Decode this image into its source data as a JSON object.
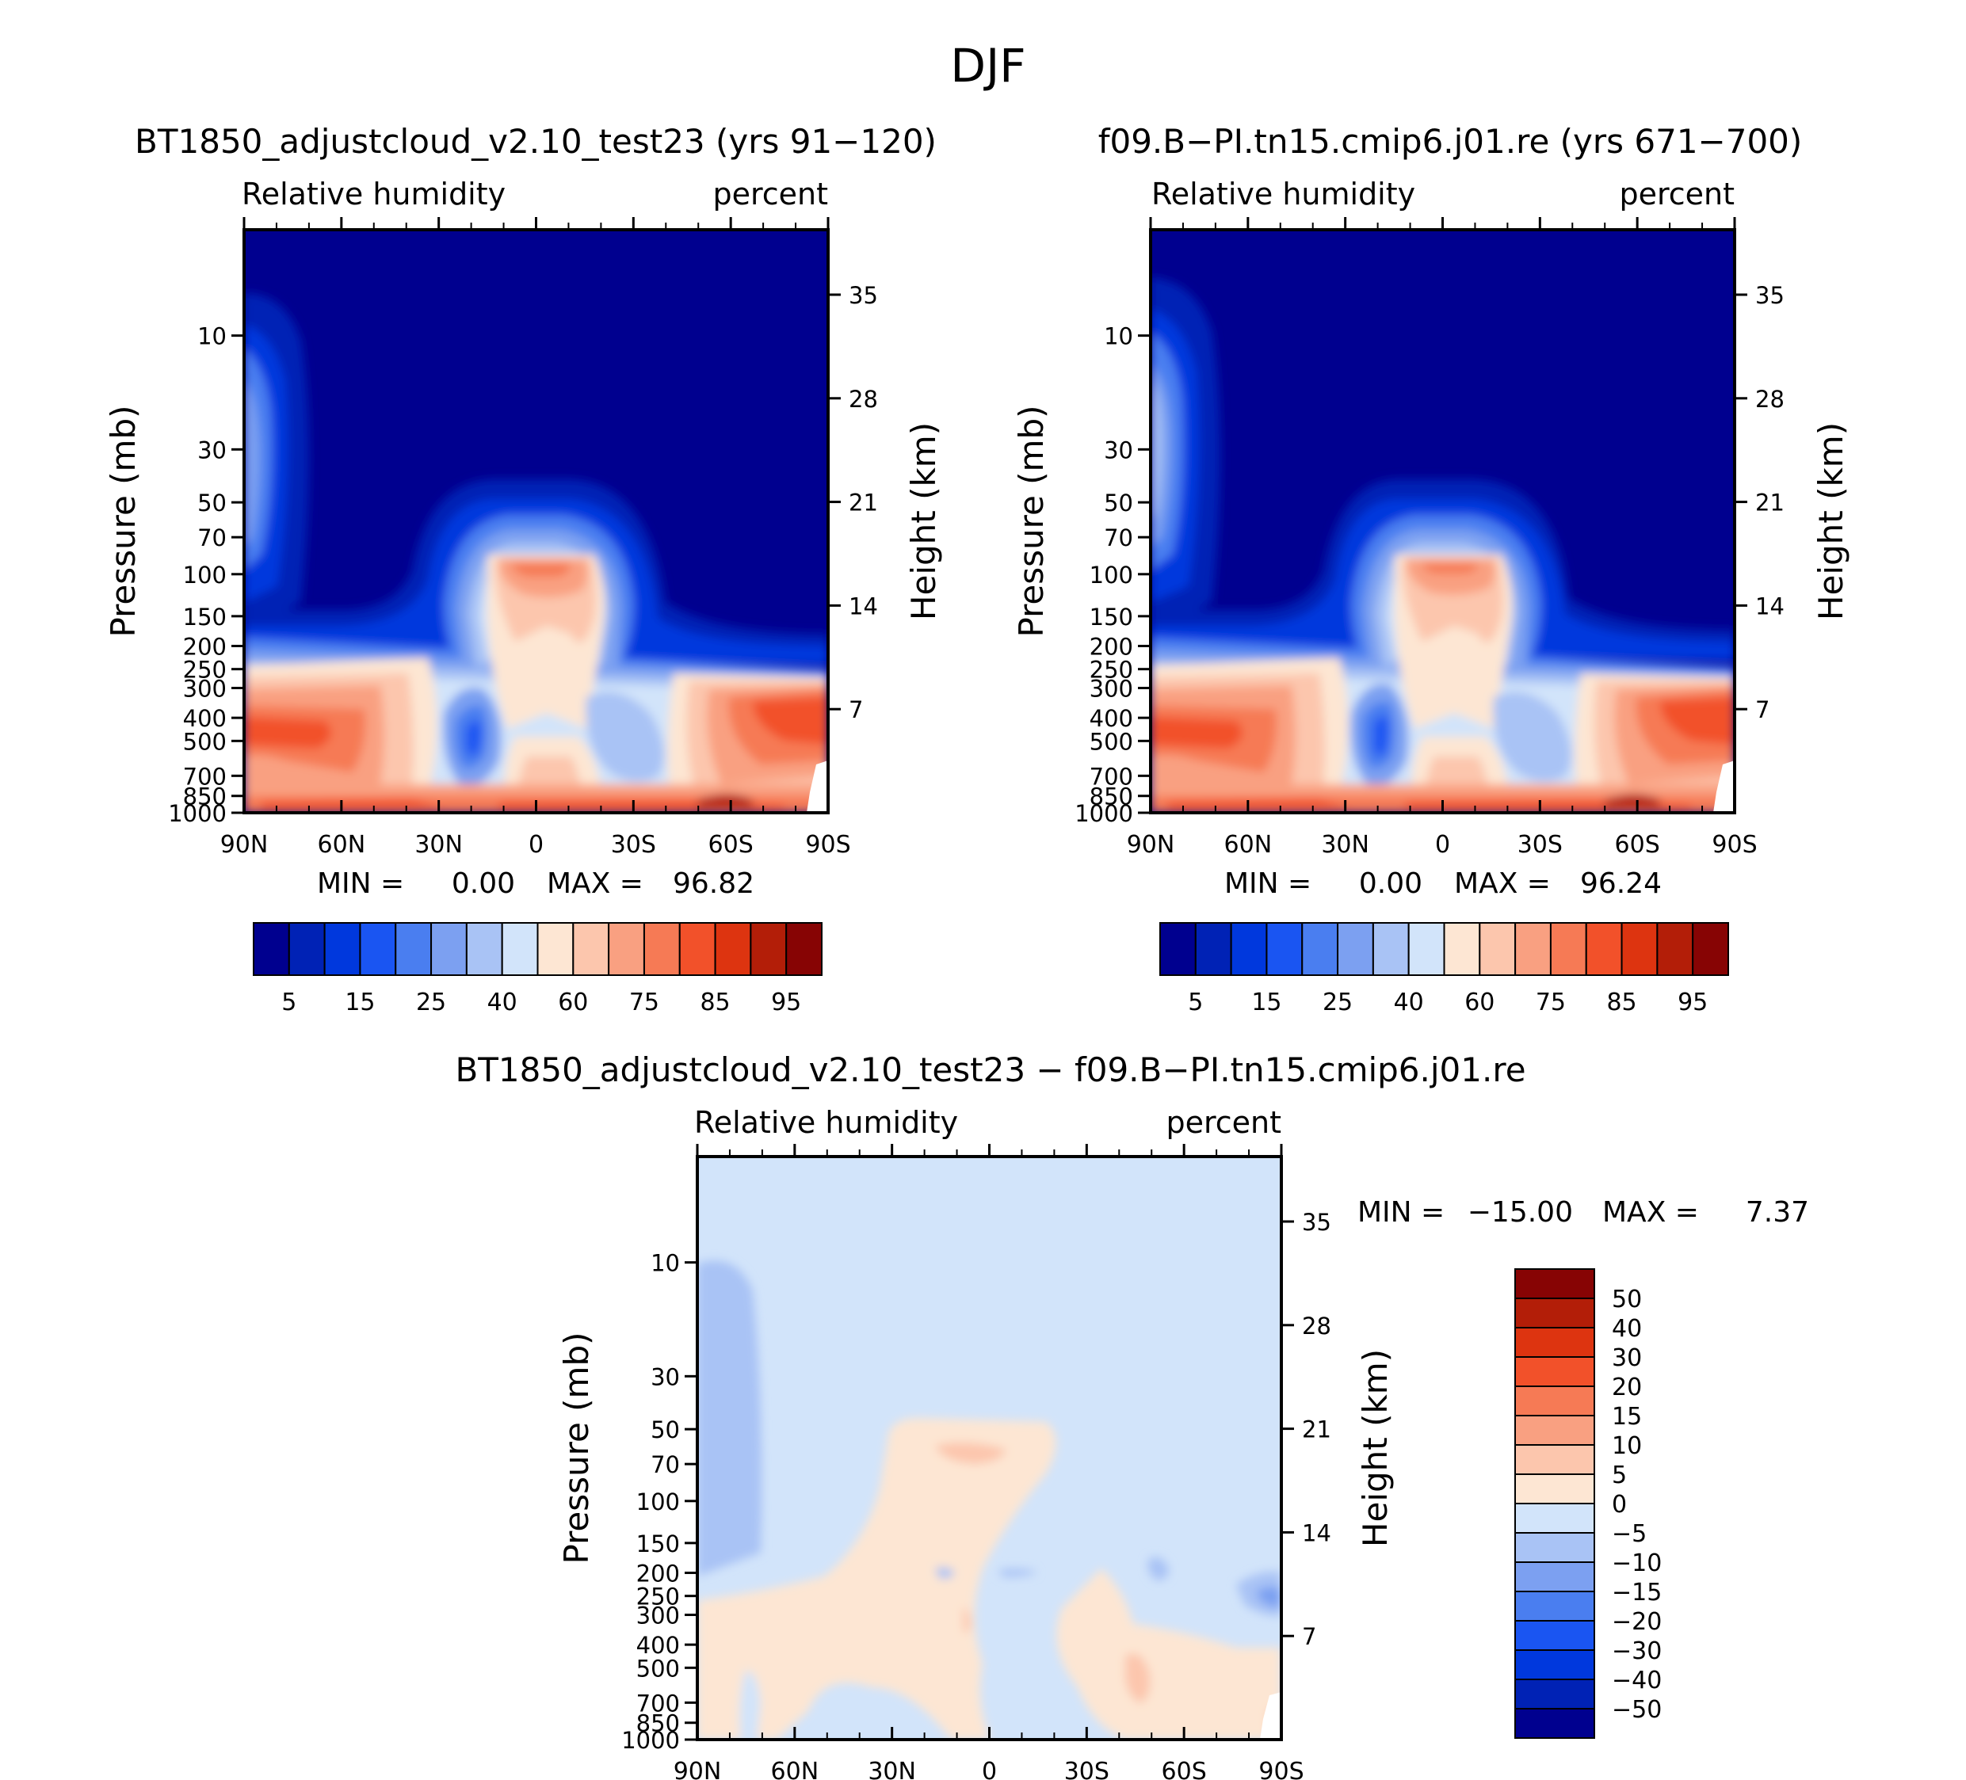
{
  "figure": {
    "title": "DJF"
  },
  "chart_data": [
    {
      "type": "heatmap",
      "title": "BT1850_adjustcloud_v2.10_test23 (yrs 91−120)",
      "variable": "Relative humidity",
      "units": "percent",
      "ylabel": "Pressure (mb)",
      "ylabel_right": "Height (km)",
      "x_ticks": [
        "90N",
        "60N",
        "30N",
        "0",
        "30S",
        "60S",
        "90S"
      ],
      "y_ticks": [
        "10",
        "30",
        "50",
        "70",
        "100",
        "150",
        "200",
        "250",
        "300",
        "400",
        "500",
        "700",
        "850",
        "1000"
      ],
      "y_ticks_right": [
        "35",
        "28",
        "21",
        "14",
        "7"
      ],
      "min_label": "MIN =",
      "min_value": "0.00",
      "max_label": "MAX =",
      "max_value": "96.82",
      "colorbar_labels": [
        "5",
        "15",
        "25",
        "40",
        "60",
        "75",
        "85",
        "95"
      ]
    },
    {
      "type": "heatmap",
      "title": "f09.B−PI.tn15.cmip6.j01.re (yrs 671−700)",
      "variable": "Relative humidity",
      "units": "percent",
      "ylabel": "Pressure (mb)",
      "ylabel_right": "Height (km)",
      "x_ticks": [
        "90N",
        "60N",
        "30N",
        "0",
        "30S",
        "60S",
        "90S"
      ],
      "y_ticks": [
        "10",
        "30",
        "50",
        "70",
        "100",
        "150",
        "200",
        "250",
        "300",
        "400",
        "500",
        "700",
        "850",
        "1000"
      ],
      "y_ticks_right": [
        "35",
        "28",
        "21",
        "14",
        "7"
      ],
      "min_label": "MIN =",
      "min_value": "0.00",
      "max_label": "MAX =",
      "max_value": "96.24",
      "colorbar_labels": [
        "5",
        "15",
        "25",
        "40",
        "60",
        "75",
        "85",
        "95"
      ]
    },
    {
      "type": "heatmap",
      "title": "BT1850_adjustcloud_v2.10_test23 − f09.B−PI.tn15.cmip6.j01.re",
      "variable": "Relative humidity",
      "units": "percent",
      "ylabel": "Pressure (mb)",
      "ylabel_right": "Height (km)",
      "x_ticks": [
        "90N",
        "60N",
        "30N",
        "0",
        "30S",
        "60S",
        "90S"
      ],
      "y_ticks": [
        "10",
        "30",
        "50",
        "70",
        "100",
        "150",
        "200",
        "250",
        "300",
        "400",
        "500",
        "700",
        "850",
        "1000"
      ],
      "y_ticks_right": [
        "35",
        "28",
        "21",
        "14",
        "7"
      ],
      "min_label": "MIN =",
      "min_value": "−15.00",
      "max_label": "MAX =",
      "max_value": "7.37",
      "colorbar_labels": [
        "50",
        "40",
        "30",
        "20",
        "15",
        "10",
        "5",
        "0",
        "−5",
        "−10",
        "−15",
        "−20",
        "−30",
        "−40",
        "−50"
      ]
    }
  ],
  "colors": {
    "abs_scale": [
      "#00008f",
      "#0022b5",
      "#0038dd",
      "#1a55f2",
      "#4a7ef0",
      "#7ca0f1",
      "#a9c3f5",
      "#d2e4fa",
      "#fde6d3",
      "#fcc6ad",
      "#f9a081",
      "#f67a55",
      "#f2512a",
      "#dd3410",
      "#b31e08",
      "#870404"
    ],
    "diff_scale": [
      "#870404",
      "#b31e08",
      "#dd3410",
      "#f2512a",
      "#f67a55",
      "#f9a081",
      "#fcc6ad",
      "#fde6d3",
      "#d2e4fa",
      "#a9c3f5",
      "#7ca0f1",
      "#4a7ef0",
      "#1a55f2",
      "#0038dd",
      "#0022b5",
      "#00008f"
    ]
  }
}
